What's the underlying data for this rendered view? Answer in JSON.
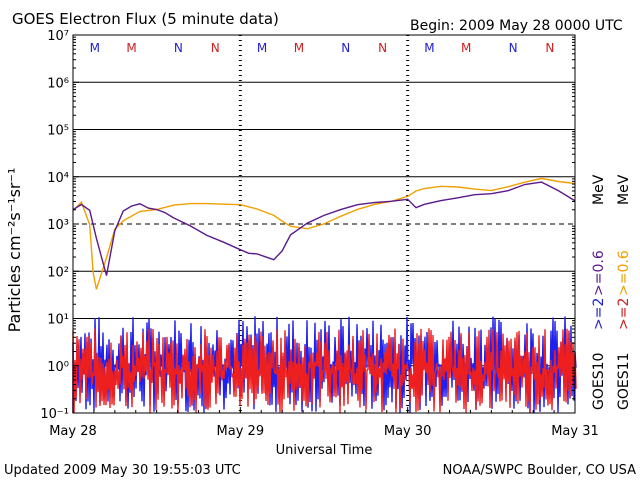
{
  "header": {
    "title": "GOES Electron Flux (5 minute data)",
    "begin": "Begin: 2009 May 28 0000 UTC"
  },
  "footer": {
    "updated": "Updated 2009 May 30 19:55:03 UTC",
    "credit": "NOAA/SWPC Boulder, CO USA"
  },
  "chart_data": {
    "type": "line",
    "title": "GOES Electron Flux (5 minute data)",
    "xlabel": "Universal Time",
    "ylabel": "Particles cm⁻²s⁻¹sr⁻¹",
    "x_ticks": [
      "May 28",
      "May 29",
      "May 30",
      "May 31"
    ],
    "xlim_days": [
      0,
      3
    ],
    "y_scale": "log",
    "ylim_exponents": [
      -1,
      7
    ],
    "y_tick_labels": [
      "10⁻¹",
      "10⁰",
      "10¹",
      "10²",
      "10³",
      "10⁴",
      "10⁵",
      "10⁶",
      "10⁷"
    ],
    "threshold_exponent": 3,
    "markers": {
      "M_positions_days": [
        0.13,
        0.35,
        1.13,
        1.35,
        2.13,
        2.35
      ],
      "N_positions_days": [
        0.63,
        0.85,
        1.63,
        1.85,
        2.63,
        2.85
      ],
      "M_label": "M",
      "N_label": "N",
      "M_colors": [
        "#1f1fcc",
        "#cc1f1f"
      ],
      "N_colors": [
        "#1f1fcc",
        "#cc1f1f"
      ]
    },
    "legend_right": {
      "mev_top": ">=2 >=0.6 MeV",
      "goes": "GOES10 GOES11",
      "gte2_label": ">=2",
      "gte06_label": ">=0.6",
      "mev_label": "MeV",
      "goes10_label": "GOES10",
      "goes11_label": "GOES11"
    },
    "series": [
      {
        "name": "GOES10 >=0.6 MeV",
        "color": "#5a1a8c",
        "x": [
          0,
          0.05,
          0.1,
          0.14,
          0.2,
          0.25,
          0.3,
          0.35,
          0.4,
          0.45,
          0.5,
          0.55,
          0.6,
          0.7,
          0.8,
          0.9,
          1.0,
          1.05,
          1.1,
          1.15,
          1.2,
          1.25,
          1.3,
          1.4,
          1.5,
          1.6,
          1.7,
          1.8,
          1.9,
          2.0,
          2.05,
          2.1,
          2.2,
          2.3,
          2.4,
          2.5,
          2.6,
          2.7,
          2.8,
          2.9,
          3.0
        ],
        "y": [
          2000,
          2500,
          2000,
          500,
          80,
          700,
          1800,
          2500,
          2600,
          2200,
          2000,
          1700,
          1400,
          900,
          600,
          400,
          280,
          250,
          230,
          210,
          180,
          280,
          600,
          1000,
          1500,
          2000,
          2500,
          2800,
          3000,
          3200,
          2200,
          2600,
          3000,
          3500,
          4000,
          4500,
          5000,
          7000,
          8000,
          5000,
          3000
        ]
      },
      {
        "name": "GOES11 >=0.6 MeV",
        "color": "#f0a000",
        "x": [
          0,
          0.05,
          0.1,
          0.12,
          0.14,
          0.2,
          0.25,
          0.3,
          0.4,
          0.5,
          0.6,
          0.7,
          0.8,
          0.9,
          1.0,
          1.1,
          1.2,
          1.25,
          1.3,
          1.4,
          1.5,
          1.6,
          1.7,
          1.8,
          1.9,
          2.0,
          2.05,
          2.1,
          2.2,
          2.3,
          2.4,
          2.5,
          2.6,
          2.7,
          2.8,
          2.9,
          3.0
        ],
        "y": [
          2000,
          3000,
          1000,
          100,
          40,
          200,
          800,
          1200,
          1800,
          2000,
          2500,
          2700,
          2800,
          2700,
          2500,
          2000,
          1500,
          1200,
          900,
          800,
          1000,
          1500,
          2000,
          2500,
          3000,
          4000,
          5000,
          5500,
          6000,
          6000,
          5500,
          5000,
          6000,
          8000,
          9000,
          8000,
          7000
        ]
      },
      {
        "name": "GOES10 >=2 MeV",
        "color": "#1f1fee",
        "band_low": 0.1,
        "band_high": 12
      },
      {
        "name": "GOES11 >=2 MeV",
        "color": "#ee1f1f",
        "band_low": 0.1,
        "band_high": 10
      }
    ]
  }
}
